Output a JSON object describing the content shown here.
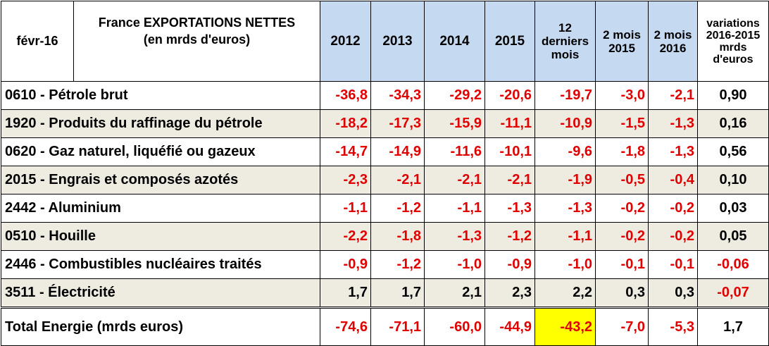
{
  "header": {
    "date": "févr-16",
    "title_line1_prefix": "France ",
    "title_line1_bold": "EXPORTATIONS NETTES",
    "title_line2": "(en mrds d'euros)",
    "columns": [
      "2012",
      "2013",
      "2014",
      "2015"
    ],
    "col_12m": [
      "12",
      "derniers",
      "mois"
    ],
    "col_2m2015": [
      "2 mois",
      "2015"
    ],
    "col_2m2016": [
      "2 mois",
      "2016"
    ],
    "col_var": [
      "variations",
      "2016-2015",
      "mrds",
      "d'euros"
    ]
  },
  "rows": [
    {
      "label": "0610 - Pétrole brut",
      "values": [
        "-36,8",
        "-34,3",
        "-29,2",
        "-20,6",
        "-19,7",
        "-3,0",
        "-2,1"
      ],
      "var": "0,90"
    },
    {
      "label": "1920 - Produits du raffinage du pétrole",
      "values": [
        "-18,2",
        "-17,3",
        "-15,9",
        "-11,1",
        "-10,9",
        "-1,5",
        "-1,3"
      ],
      "var": "0,16"
    },
    {
      "label": "0620 - Gaz naturel, liquéfié ou gazeux",
      "values": [
        "-14,7",
        "-14,9",
        "-11,6",
        "-10,1",
        "-9,6",
        "-1,8",
        "-1,3"
      ],
      "var": "0,56"
    },
    {
      "label": "2015 - Engrais et composés azotés",
      "values": [
        "-2,3",
        "-2,1",
        "-2,1",
        "-2,1",
        "-1,9",
        "-0,5",
        "-0,4"
      ],
      "var": "0,10"
    },
    {
      "label": "2442 - Aluminium",
      "values": [
        "-1,1",
        "-1,2",
        "-1,1",
        "-1,3",
        "-1,3",
        "-0,2",
        "-0,2"
      ],
      "var": "0,03"
    },
    {
      "label": "0510 - Houille",
      "values": [
        "-2,2",
        "-1,8",
        "-1,3",
        "-1,2",
        "-1,1",
        "-0,2",
        "-0,2"
      ],
      "var": "0,05"
    },
    {
      "label": "2446 - Combustibles nucléaires traités",
      "values": [
        "-0,9",
        "-1,2",
        "-1,0",
        "-0,9",
        "-1,0",
        "-0,1",
        "-0,1"
      ],
      "var": "-0,06"
    },
    {
      "label": "3511 - Électricité",
      "values": [
        "1,7",
        "1,7",
        "2,1",
        "2,3",
        "2,2",
        "0,3",
        "0,3"
      ],
      "var": "-0,07"
    }
  ],
  "total": {
    "label": "Total Energie (mrds euros)",
    "values": [
      "-74,6",
      "-71,1",
      "-60,0",
      "-44,9",
      "-43,2",
      "-7,0",
      "-5,3"
    ],
    "var": "1,7"
  },
  "colors": {
    "header_blue": "#c5d9f1",
    "alt_row": "#eeece1",
    "negative": "#e00000",
    "highlight": "#ffff00"
  }
}
